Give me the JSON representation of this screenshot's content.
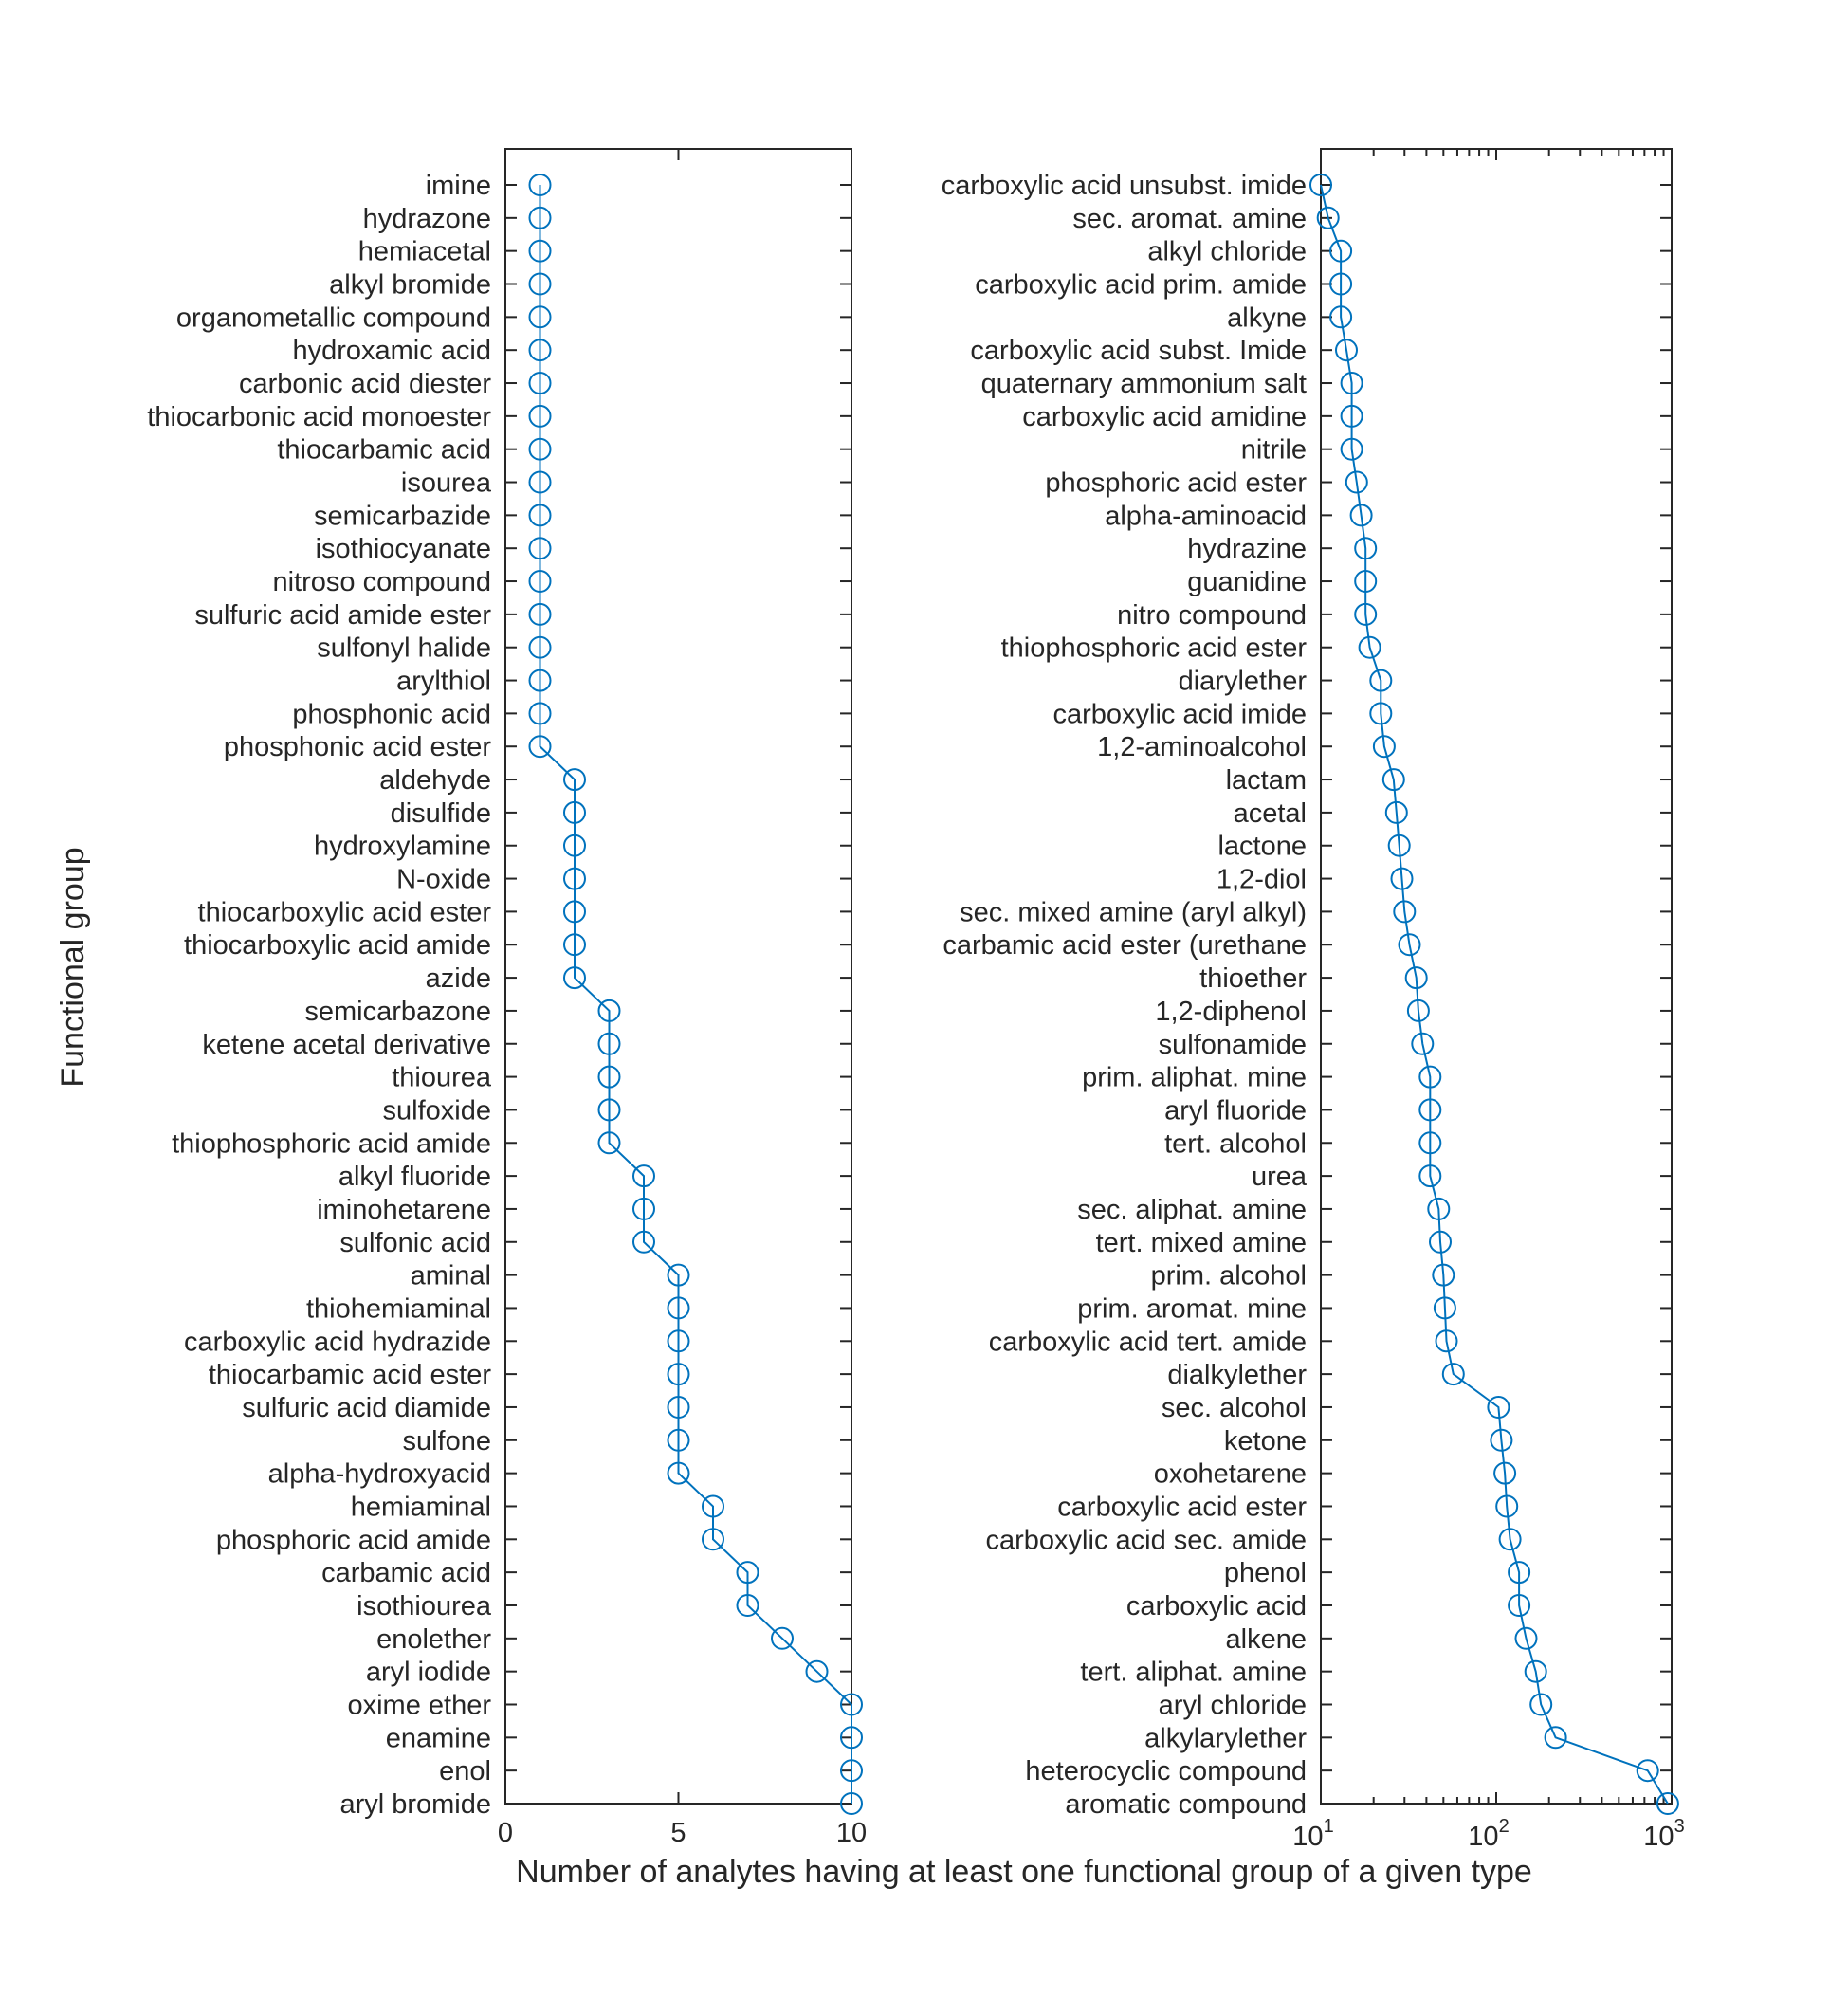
{
  "colors": {
    "series": "#0072BD",
    "axes": "#262626",
    "background": "#ffffff"
  },
  "chart_data": [
    {
      "type": "line",
      "marker": "circle",
      "scale": "linear",
      "xlim": [
        0,
        10
      ],
      "xticks": [
        "0",
        "5",
        "10"
      ],
      "xtick_values": [
        0,
        5,
        10
      ],
      "ylabel": "Functional group",
      "categories": [
        "imine",
        "hydrazone",
        "hemiacetal",
        "alkyl bromide",
        "organometallic compound",
        "hydroxamic acid",
        "carbonic acid diester",
        "thiocarbonic acid monoester",
        "thiocarbamic acid",
        "isourea",
        "semicarbazide",
        "isothiocyanate",
        "nitroso compound",
        "sulfuric acid amide ester",
        "sulfonyl halide",
        "arylthiol",
        "phosphonic acid",
        "phosphonic acid ester",
        "aldehyde",
        "disulfide",
        "hydroxylamine",
        "N-oxide",
        "thiocarboxylic acid ester",
        "thiocarboxylic acid amide",
        "azide",
        "semicarbazone",
        "ketene acetal derivative",
        "thiourea",
        "sulfoxide",
        "thiophosphoric acid amide",
        "alkyl fluoride",
        "iminohetarene",
        "sulfonic acid",
        "aminal",
        "thiohemiaminal",
        "carboxylic acid hydrazide",
        "thiocarbamic acid ester",
        "sulfuric acid diamide",
        "sulfone",
        "alpha-hydroxyacid",
        "hemiaminal",
        "phosphoric acid amide",
        "carbamic acid",
        "isothiourea",
        "enolether",
        "aryl iodide",
        "oxime ether",
        "enamine",
        "enol",
        "aryl bromide"
      ],
      "values": [
        1,
        1,
        1,
        1,
        1,
        1,
        1,
        1,
        1,
        1,
        1,
        1,
        1,
        1,
        1,
        1,
        1,
        1,
        2,
        2,
        2,
        2,
        2,
        2,
        2,
        3,
        3,
        3,
        3,
        3,
        4,
        4,
        4,
        5,
        5,
        5,
        5,
        5,
        5,
        5,
        6,
        6,
        7,
        7,
        8,
        9,
        10,
        10,
        10,
        10
      ]
    },
    {
      "type": "line",
      "marker": "circle",
      "scale": "log",
      "xlim": [
        10,
        1000
      ],
      "xticks": [
        {
          "base": "10",
          "exp": "1"
        },
        {
          "base": "10",
          "exp": "2"
        },
        {
          "base": "10",
          "exp": "3"
        }
      ],
      "xtick_values": [
        10,
        100,
        1000
      ],
      "categories": [
        "carboxylic acid unsubst. imide",
        "sec. aromat. amine",
        "alkyl chloride",
        "carboxylic acid prim. amide",
        "alkyne",
        "carboxylic acid subst. Imide",
        "quaternary ammonium salt",
        "carboxylic acid amidine",
        "nitrile",
        "phosphoric acid ester",
        "alpha-aminoacid",
        "hydrazine",
        "guanidine",
        "nitro compound",
        "thiophosphoric acid ester",
        "diarylether",
        "carboxylic acid imide",
        "1,2-aminoalcohol",
        "lactam",
        "acetal",
        "lactone",
        "1,2-diol",
        "sec. mixed amine (aryl alkyl)",
        "carbamic acid ester (urethane",
        "thioether",
        "1,2-diphenol",
        "sulfonamide",
        "prim. aliphat. mine",
        "aryl fluoride",
        "tert. alcohol",
        "urea",
        "sec. aliphat. amine",
        "tert. mixed amine",
        "prim. alcohol",
        "prim. aromat. mine",
        "carboxylic acid tert. amide",
        "dialkylether",
        "sec. alcohol",
        "ketone",
        "oxohetarene",
        "carboxylic acid ester",
        "carboxylic acid sec. amide",
        "phenol",
        "carboxylic acid",
        "alkene",
        "tert. aliphat. amine",
        "aryl chloride",
        "alkylarylether",
        "heterocyclic compound",
        "aromatic compound"
      ],
      "values": [
        10,
        11,
        13,
        13,
        13,
        14,
        15,
        15,
        15,
        16,
        17,
        18,
        18,
        18,
        19,
        22,
        22,
        23,
        26,
        27,
        28,
        29,
        30,
        32,
        35,
        36,
        38,
        42,
        42,
        42,
        42,
        47,
        48,
        50,
        51,
        52,
        57,
        103,
        107,
        112,
        115,
        120,
        135,
        135,
        148,
        168,
        180,
        218,
        730,
        950
      ]
    }
  ],
  "xlabel": "Number of analytes having at least one functional group of a given type"
}
